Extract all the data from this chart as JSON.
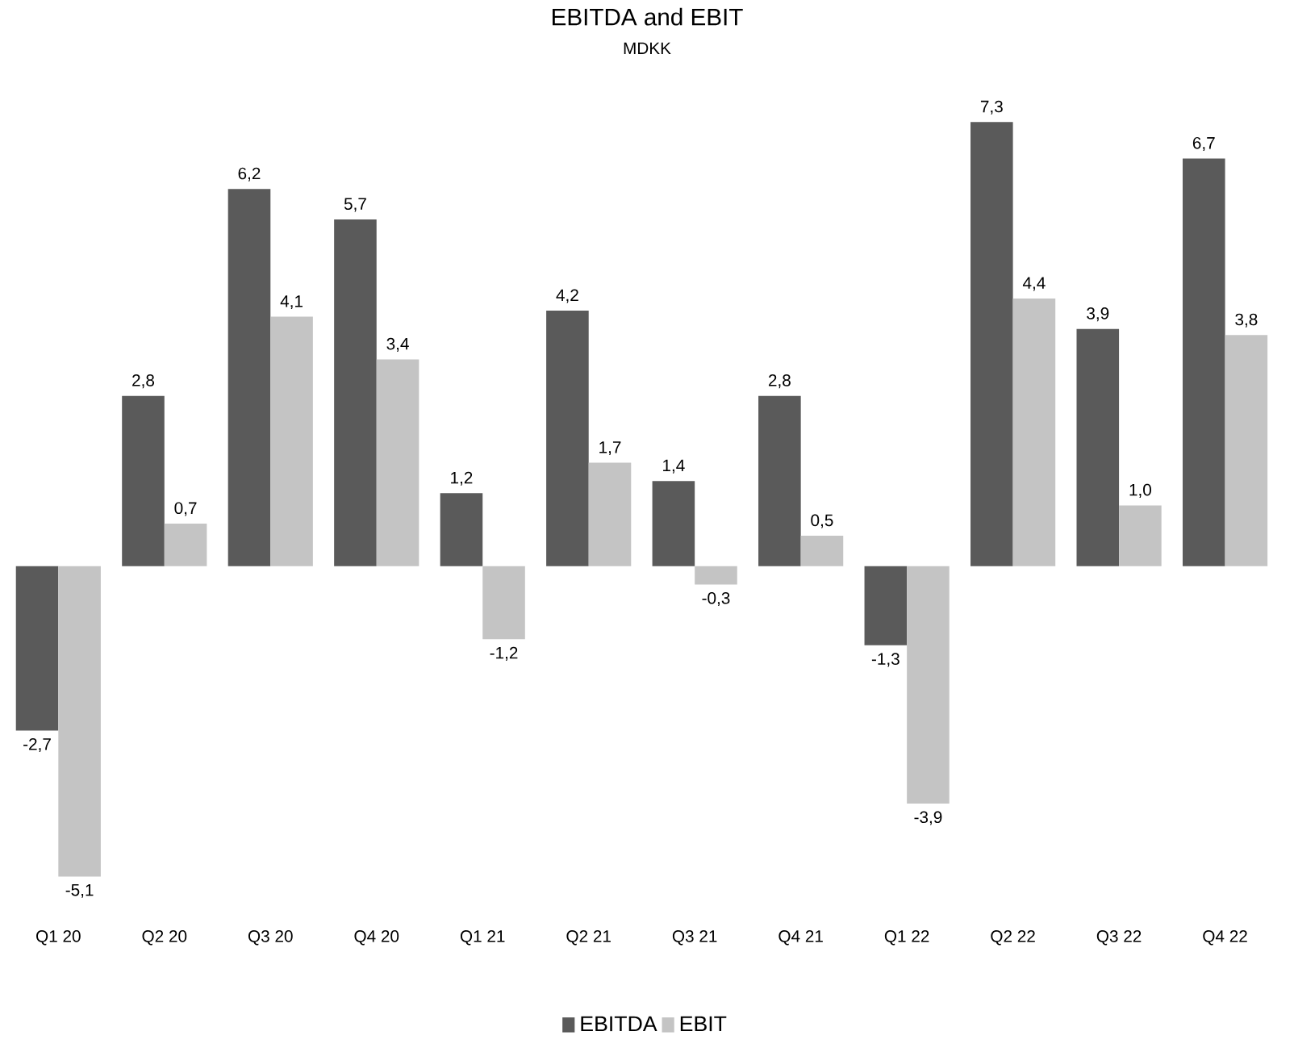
{
  "chart_data": {
    "type": "bar",
    "title": "EBITDA and EBIT",
    "subtitle": "MDKK",
    "categories": [
      "Q1 20",
      "Q2 20",
      "Q3 20",
      "Q4 20",
      "Q1 21",
      "Q2 21",
      "Q3 21",
      "Q4 21",
      "Q1 22",
      "Q2 22",
      "Q3 22",
      "Q4 22"
    ],
    "series": [
      {
        "name": "EBITDA",
        "color": "#5a5a5a",
        "values": [
          -2.7,
          2.8,
          6.2,
          5.7,
          1.2,
          4.2,
          1.4,
          2.8,
          -1.3,
          7.3,
          3.9,
          6.7
        ],
        "value_labels": [
          "-2,7",
          "2,8",
          "6,2",
          "5,7",
          "1,2",
          "4,2",
          "1,4",
          "2,8",
          "-1,3",
          "7,3",
          "3,9",
          "6,7"
        ]
      },
      {
        "name": "EBIT",
        "color": "#c4c4c4",
        "values": [
          -5.1,
          0.7,
          4.1,
          3.4,
          -1.2,
          1.7,
          -0.3,
          0.5,
          -3.9,
          4.4,
          1.0,
          3.8
        ],
        "value_labels": [
          "-5,1",
          "0,7",
          "4,1",
          "3,4",
          "-1,2",
          "1,7",
          "-0,3",
          "0,5",
          "-3,9",
          "4,4",
          "1,0",
          "3,8"
        ]
      }
    ],
    "legend": "bottom"
  }
}
